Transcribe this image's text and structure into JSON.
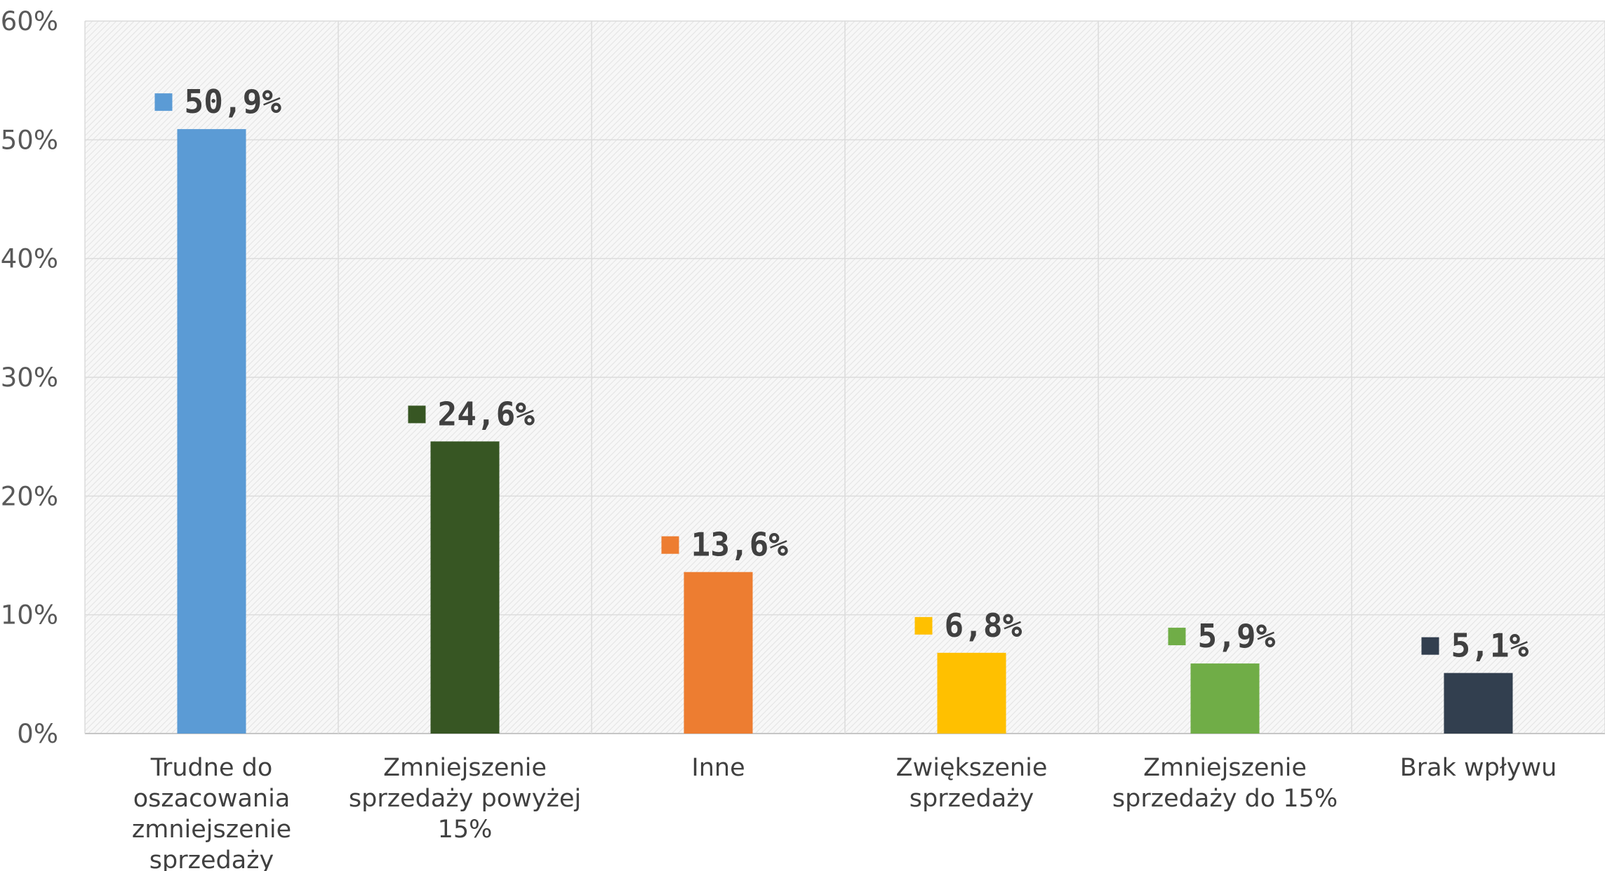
{
  "chart_data": {
    "type": "bar",
    "categories": [
      [
        "Trudne do",
        "oszacowania",
        "zmniejszenie",
        "sprzedaży"
      ],
      [
        "Zmniejszenie",
        "sprzedaży powyżej",
        "15%"
      ],
      [
        "Inne"
      ],
      [
        "Zwiększenie",
        "sprzedaży"
      ],
      [
        "Zmniejszenie",
        "sprzedaży do 15%"
      ],
      [
        "Brak wpływu"
      ]
    ],
    "values": [
      50.9,
      24.6,
      13.6,
      6.8,
      5.9,
      5.1
    ],
    "value_labels": [
      "50,9%",
      "24,6%",
      "13,6%",
      "6,8%",
      "5,9%",
      "5,1%"
    ],
    "colors": [
      "#5b9bd5",
      "#375623",
      "#ed7d31",
      "#ffc000",
      "#70ad47",
      "#323f4f"
    ],
    "y_ticks": [
      0,
      10,
      20,
      30,
      40,
      50,
      60
    ],
    "y_tick_labels": [
      "0%",
      "10%",
      "20%",
      "30%",
      "40%",
      "50%",
      "60%"
    ],
    "ylim": [
      0,
      60
    ],
    "title": "",
    "xlabel": "",
    "ylabel": "",
    "grid": true,
    "legend": "none",
    "plot_background": "hatched-gray"
  }
}
